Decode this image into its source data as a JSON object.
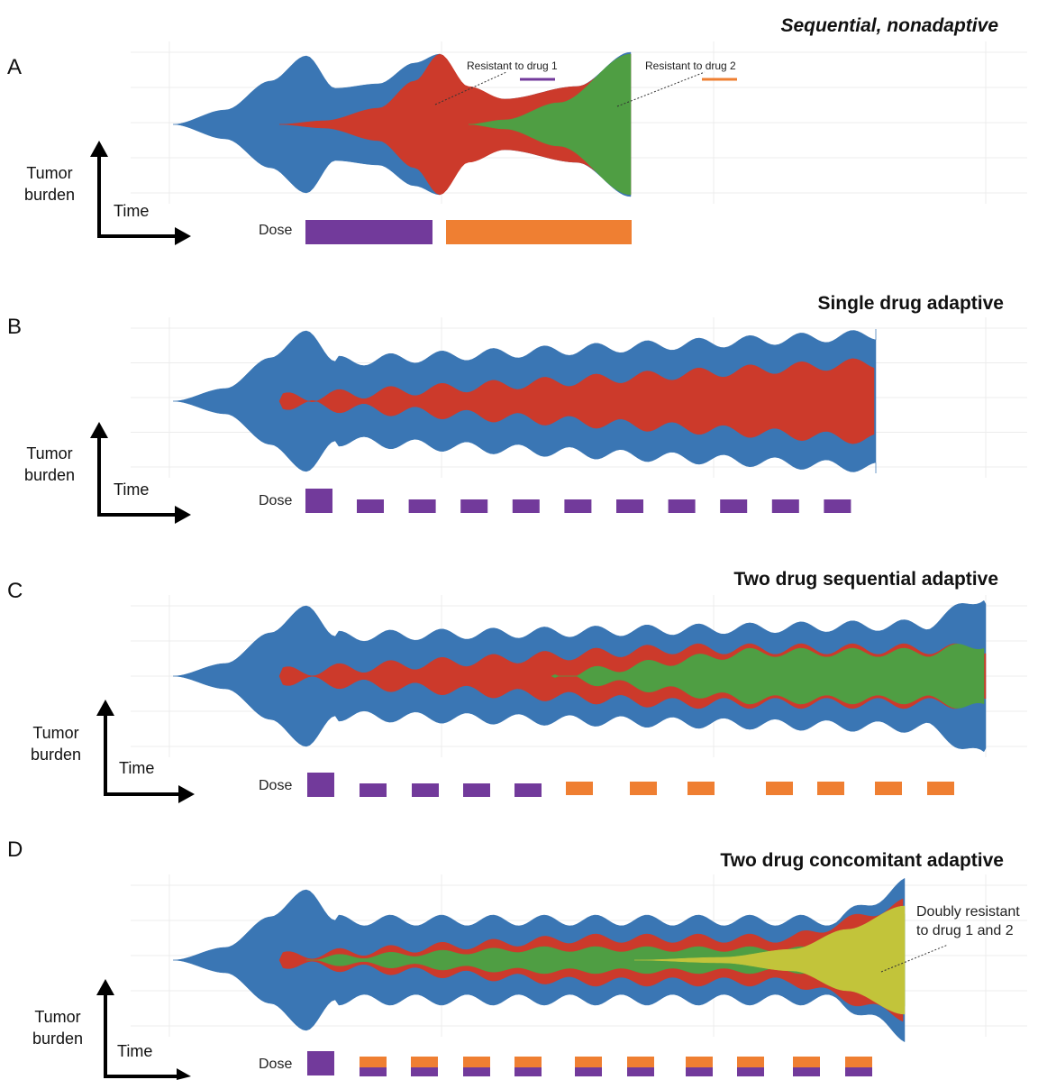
{
  "colors": {
    "sensitive": "#3a76b4",
    "resistant1": "#cc3a2b",
    "resistant2": "#4f9e43",
    "doubly": "#c2c43a",
    "drug1": "#723a9b",
    "drug2": "#ef7f32",
    "grid": "#ececec",
    "axis": "#000000"
  },
  "common": {
    "y_axis_label_line1": "Tumor",
    "y_axis_label_line2": "burden",
    "x_axis_label": "Time",
    "dose_label": "Dose"
  },
  "panels": [
    {
      "id": "A",
      "letter": "A",
      "title": "Sequential, nonadaptive",
      "title_italic": true,
      "annotations": [
        "Resistant to drug 1",
        "Resistant to drug 2"
      ],
      "dose_drugs": [
        "drug 1",
        "drug 2"
      ]
    },
    {
      "id": "B",
      "letter": "B",
      "title": "Single drug adaptive",
      "title_italic": false,
      "annotations": [],
      "dose_drugs": [
        "drug 1"
      ]
    },
    {
      "id": "C",
      "letter": "C",
      "title": "Two drug sequential adaptive",
      "title_italic": false,
      "annotations": [],
      "dose_drugs": [
        "drug 1",
        "drug 2"
      ]
    },
    {
      "id": "D",
      "letter": "D",
      "title": "Two drug concomitant adaptive",
      "title_italic": false,
      "annotations": [
        "Doubly resistant",
        "to drug 1 and 2"
      ],
      "dose_drugs": [
        "drug 1",
        "drug 2"
      ]
    }
  ]
}
